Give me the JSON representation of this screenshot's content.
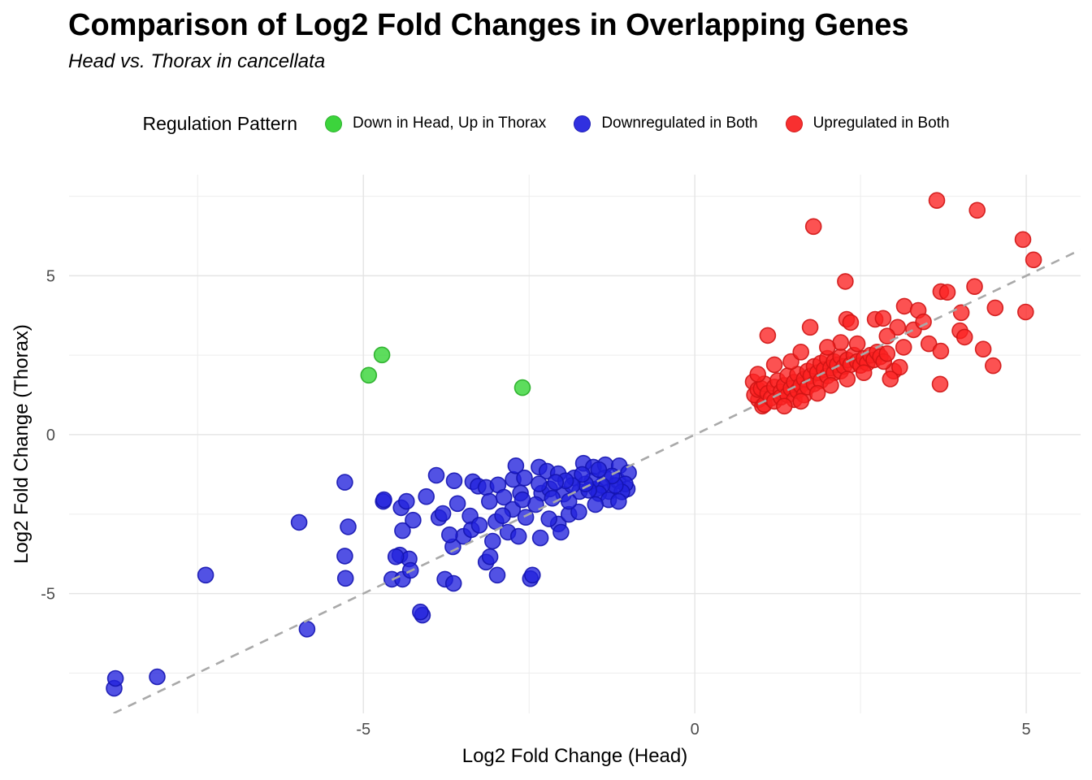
{
  "title": "Comparison of Log2 Fold Changes in Overlapping Genes",
  "subtitle": "Head vs. Thorax in cancellata",
  "legend": {
    "title": "Regulation Pattern",
    "items": [
      {
        "label": "Down in Head, Up in Thorax",
        "color": "#3cd43c"
      },
      {
        "label": "Downregulated in Both",
        "color": "#3030e0"
      },
      {
        "label": "Upregulated in Both",
        "color": "#f83030"
      }
    ]
  },
  "chart_data": {
    "type": "scatter",
    "title": "Comparison of Log2 Fold Changes in Overlapping Genes",
    "subtitle": "Head vs. Thorax in cancellata",
    "xlabel": "Log2 Fold Change (Head)",
    "ylabel": "Log2 Fold Change (Thorax)",
    "xlim": [
      -9.44,
      5.82
    ],
    "ylim": [
      -8.77,
      8.18
    ],
    "x_ticks": [
      -5,
      0,
      5
    ],
    "y_ticks": [
      -5,
      0,
      5
    ],
    "x_minor_ticks": [
      -7.5,
      -2.5,
      2.5
    ],
    "y_minor_ticks": [
      -7.5,
      -2.5,
      2.5,
      7.5
    ],
    "grid": {
      "major_color": "#e4e4e4",
      "minor_color": "#ededed"
    },
    "identity_line": {
      "slope": 1,
      "intercept": 0,
      "dash": "11 9",
      "color": "#a9a9a9",
      "width": 2.6
    },
    "marker": {
      "radius": 9.5,
      "fill_opacity": 0.78,
      "stroke_width": 1.6
    },
    "series": [
      {
        "name": "Down in Head, Up in Thorax",
        "fill": "#2fd42f",
        "stroke": "#26ad26",
        "points": [
          [
            -4.92,
            1.87
          ],
          [
            -4.72,
            2.51
          ],
          [
            -2.6,
            1.48
          ]
        ]
      },
      {
        "name": "Downregulated in Both",
        "fill": "#2121dd",
        "stroke": "#1414b0",
        "points": [
          [
            -8.76,
            -7.98
          ],
          [
            -8.74,
            -7.67
          ],
          [
            -8.11,
            -7.62
          ],
          [
            -7.38,
            -4.42
          ],
          [
            -5.97,
            -2.76
          ],
          [
            -5.85,
            -6.12
          ],
          [
            -5.28,
            -1.5
          ],
          [
            -5.23,
            -2.9
          ],
          [
            -5.28,
            -3.82
          ],
          [
            -5.27,
            -4.52
          ],
          [
            -4.7,
            -2.1
          ],
          [
            -4.57,
            -4.55
          ],
          [
            -4.11,
            -5.68
          ],
          [
            -4.69,
            -2.05
          ],
          [
            -4.43,
            -2.3
          ],
          [
            -4.35,
            -2.1
          ],
          [
            -4.25,
            -2.69
          ],
          [
            -4.41,
            -3.02
          ],
          [
            -4.45,
            -3.79
          ],
          [
            -4.31,
            -3.91
          ],
          [
            -4.51,
            -3.84
          ],
          [
            -4.41,
            -4.55
          ],
          [
            -4.29,
            -4.27
          ],
          [
            -4.14,
            -5.58
          ],
          [
            -3.86,
            -2.61
          ],
          [
            -3.8,
            -2.48
          ],
          [
            -3.77,
            -4.55
          ],
          [
            -3.64,
            -4.68
          ],
          [
            -3.65,
            -3.53
          ],
          [
            -3.58,
            -2.17
          ],
          [
            -3.49,
            -3.2
          ],
          [
            -3.39,
            -2.56
          ],
          [
            -3.37,
            -2.99
          ],
          [
            -3.35,
            -1.48
          ],
          [
            -3.27,
            -1.62
          ],
          [
            -3.15,
            -1.66
          ],
          [
            -3.15,
            -4.01
          ],
          [
            -3.09,
            -3.84
          ],
          [
            -3.1,
            -2.1
          ],
          [
            -3.0,
            -2.74
          ],
          [
            -2.98,
            -4.42
          ],
          [
            -2.97,
            -1.58
          ],
          [
            -2.88,
            -1.97
          ],
          [
            -2.82,
            -3.07
          ],
          [
            -2.74,
            -1.41
          ],
          [
            -2.7,
            -0.98
          ],
          [
            -2.66,
            -3.2
          ],
          [
            -2.63,
            -1.84
          ],
          [
            -2.57,
            -1.36
          ],
          [
            -2.48,
            -4.53
          ],
          [
            -2.45,
            -4.42
          ],
          [
            -2.35,
            -1.02
          ],
          [
            -2.33,
            -3.25
          ],
          [
            -2.31,
            -1.84
          ],
          [
            -2.23,
            -1.15
          ],
          [
            -2.19,
            -1.71
          ],
          [
            -2.06,
            -1.23
          ],
          [
            -2.06,
            -2.81
          ],
          [
            -2.02,
            -3.07
          ],
          [
            -1.98,
            -1.87
          ],
          [
            -1.9,
            -2.51
          ],
          [
            -1.82,
            -1.36
          ],
          [
            -1.75,
            -2.43
          ],
          [
            -1.74,
            -1.79
          ],
          [
            -1.68,
            -0.9
          ],
          [
            -1.53,
            -1.02
          ],
          [
            -1.49,
            -1.71
          ],
          [
            -1.35,
            -0.95
          ],
          [
            -1.35,
            -1.36
          ],
          [
            -1.29,
            -1.79
          ],
          [
            -1.16,
            -1.45
          ],
          [
            -1.14,
            -0.98
          ],
          [
            -1.02,
            -1.71
          ],
          [
            -1.0,
            -1.2
          ],
          [
            -3.9,
            -1.28
          ],
          [
            -3.63,
            -1.45
          ],
          [
            -1.05,
            -1.55
          ],
          [
            -1.1,
            -1.8
          ],
          [
            -1.2,
            -1.6
          ],
          [
            -1.25,
            -1.3
          ],
          [
            -1.4,
            -1.6
          ],
          [
            -1.45,
            -1.85
          ],
          [
            -1.55,
            -1.45
          ],
          [
            -1.6,
            -1.75
          ],
          [
            -1.3,
            -2.05
          ],
          [
            -1.15,
            -2.1
          ],
          [
            -1.65,
            -1.55
          ],
          [
            -1.7,
            -1.25
          ],
          [
            -1.85,
            -1.6
          ],
          [
            -1.95,
            -1.45
          ],
          [
            -2.1,
            -1.5
          ],
          [
            -1.5,
            -2.2
          ],
          [
            -1.9,
            -2.1
          ],
          [
            -2.15,
            -2.0
          ],
          [
            -2.4,
            -2.2
          ],
          [
            -2.55,
            -2.6
          ],
          [
            -2.75,
            -2.35
          ],
          [
            -2.9,
            -2.55
          ],
          [
            -3.05,
            -3.35
          ],
          [
            -3.25,
            -2.85
          ],
          [
            -3.7,
            -3.15
          ],
          [
            -2.2,
            -2.65
          ],
          [
            -2.6,
            -2.05
          ],
          [
            -2.35,
            -1.55
          ],
          [
            -1.45,
            -1.1
          ],
          [
            -4.05,
            -1.95
          ]
        ]
      },
      {
        "name": "Upregulated in Both",
        "fill": "#fb2121",
        "stroke": "#cf1414",
        "points": [
          [
            3.65,
            7.37
          ],
          [
            4.26,
            7.06
          ],
          [
            1.79,
            6.55
          ],
          [
            4.95,
            6.14
          ],
          [
            5.11,
            5.5
          ],
          [
            2.27,
            4.82
          ],
          [
            4.22,
            4.66
          ],
          [
            3.71,
            4.5
          ],
          [
            3.81,
            4.48
          ],
          [
            4.53,
            3.99
          ],
          [
            4.99,
            3.86
          ],
          [
            4.02,
            3.84
          ],
          [
            4.0,
            3.27
          ],
          [
            4.07,
            3.07
          ],
          [
            3.16,
            4.04
          ],
          [
            3.37,
            3.91
          ],
          [
            3.06,
            3.38
          ],
          [
            2.72,
            3.63
          ],
          [
            2.84,
            3.66
          ],
          [
            1.74,
            3.38
          ],
          [
            1.1,
            3.12
          ],
          [
            2.29,
            3.63
          ],
          [
            2.35,
            3.53
          ],
          [
            3.53,
            2.86
          ],
          [
            3.71,
            2.63
          ],
          [
            4.35,
            2.69
          ],
          [
            4.5,
            2.17
          ],
          [
            3.7,
            1.59
          ],
          [
            3.0,
            2.0
          ],
          [
            3.09,
            2.12
          ],
          [
            0.88,
            1.66
          ],
          [
            0.96,
            1.1
          ],
          [
            1.02,
            0.9
          ],
          [
            0.9,
            1.25
          ],
          [
            0.95,
            1.42
          ],
          [
            1.0,
            1.45
          ],
          [
            1.05,
            0.95
          ],
          [
            1.05,
            1.6
          ],
          [
            1.1,
            1.3
          ],
          [
            1.15,
            1.15
          ],
          [
            1.2,
            1.5
          ],
          [
            1.2,
            1.05
          ],
          [
            1.25,
            1.7
          ],
          [
            1.3,
            1.35
          ],
          [
            1.3,
            1.18
          ],
          [
            1.35,
            1.55
          ],
          [
            1.4,
            1.25
          ],
          [
            1.4,
            1.85
          ],
          [
            1.45,
            1.45
          ],
          [
            1.5,
            1.65
          ],
          [
            1.5,
            1.1
          ],
          [
            1.55,
            1.9
          ],
          [
            1.55,
            1.38
          ],
          [
            1.6,
            1.55
          ],
          [
            1.65,
            1.75
          ],
          [
            1.65,
            1.25
          ],
          [
            1.7,
            2.0
          ],
          [
            1.7,
            1.5
          ],
          [
            1.75,
            1.85
          ],
          [
            1.8,
            1.6
          ],
          [
            1.8,
            2.15
          ],
          [
            1.85,
            1.95
          ],
          [
            1.9,
            1.7
          ],
          [
            1.9,
            2.25
          ],
          [
            1.95,
            2.05
          ],
          [
            2.0,
            1.85
          ],
          [
            2.0,
            2.4
          ],
          [
            2.05,
            2.1
          ],
          [
            2.1,
            1.95
          ],
          [
            2.1,
            2.3
          ],
          [
            2.15,
            2.2
          ],
          [
            2.2,
            2.0
          ],
          [
            2.2,
            2.45
          ],
          [
            2.25,
            2.15
          ],
          [
            2.3,
            2.35
          ],
          [
            2.35,
            2.2
          ],
          [
            2.4,
            2.5
          ],
          [
            2.45,
            2.3
          ],
          [
            2.5,
            2.18
          ],
          [
            2.55,
            2.4
          ],
          [
            2.6,
            2.25
          ],
          [
            2.65,
            2.5
          ],
          [
            2.7,
            2.35
          ],
          [
            2.75,
            2.6
          ],
          [
            2.8,
            2.45
          ],
          [
            2.85,
            2.3
          ],
          [
            2.9,
            2.55
          ],
          [
            1.35,
            0.9
          ],
          [
            1.6,
            1.05
          ],
          [
            1.85,
            1.3
          ],
          [
            2.05,
            1.55
          ],
          [
            2.3,
            1.75
          ],
          [
            2.55,
            1.95
          ],
          [
            2.45,
            2.86
          ],
          [
            2.2,
            2.9
          ],
          [
            2.0,
            2.75
          ],
          [
            0.95,
            1.9
          ],
          [
            1.2,
            2.2
          ],
          [
            1.45,
            2.3
          ],
          [
            1.6,
            2.6
          ],
          [
            3.3,
            3.3
          ],
          [
            3.45,
            3.55
          ],
          [
            2.9,
            3.1
          ],
          [
            3.15,
            2.75
          ],
          [
            2.95,
            1.75
          ]
        ]
      }
    ]
  }
}
